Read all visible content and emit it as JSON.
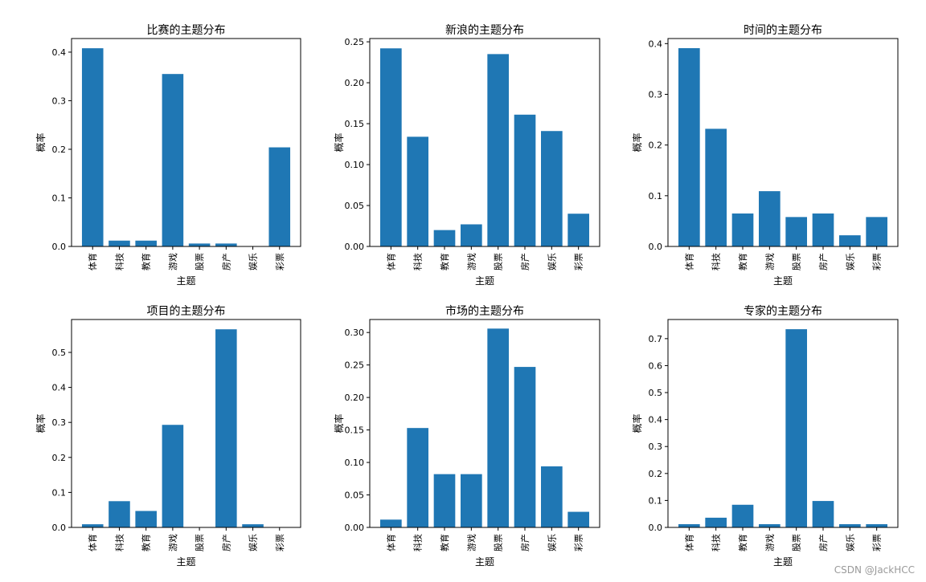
{
  "watermark": "CSDN @JackHCC",
  "colors": {
    "bar": "#1f77b4",
    "axis": "#000000"
  },
  "chart_data": [
    {
      "type": "bar",
      "title": "比赛的主题分布",
      "xlabel": "主题",
      "ylabel": "概率",
      "categories": [
        "体育",
        "科技",
        "教育",
        "游戏",
        "股票",
        "房产",
        "娱乐",
        "彩票"
      ],
      "values": [
        0.408,
        0.012,
        0.012,
        0.355,
        0.006,
        0.006,
        0.0,
        0.204
      ],
      "ylim": [
        0,
        0.428
      ],
      "yticks": [
        0.0,
        0.1,
        0.2,
        0.3,
        0.4
      ],
      "ytick_labels": [
        "0.0",
        "0.1",
        "0.2",
        "0.3",
        "0.4"
      ]
    },
    {
      "type": "bar",
      "title": "新浪的主题分布",
      "xlabel": "主题",
      "ylabel": "概率",
      "categories": [
        "体育",
        "科技",
        "教育",
        "游戏",
        "股票",
        "房产",
        "娱乐",
        "彩票"
      ],
      "values": [
        0.242,
        0.134,
        0.02,
        0.027,
        0.235,
        0.161,
        0.141,
        0.04
      ],
      "ylim": [
        0,
        0.254
      ],
      "yticks": [
        0.0,
        0.05,
        0.1,
        0.15,
        0.2,
        0.25
      ],
      "ytick_labels": [
        "0.00",
        "0.05",
        "0.10",
        "0.15",
        "0.20",
        "0.25"
      ]
    },
    {
      "type": "bar",
      "title": "时间的主题分布",
      "xlabel": "主题",
      "ylabel": "概率",
      "categories": [
        "体育",
        "科技",
        "教育",
        "游戏",
        "股票",
        "房产",
        "娱乐",
        "彩票"
      ],
      "values": [
        0.391,
        0.232,
        0.065,
        0.109,
        0.058,
        0.065,
        0.022,
        0.058
      ],
      "ylim": [
        0,
        0.41
      ],
      "yticks": [
        0.0,
        0.1,
        0.2,
        0.3,
        0.4
      ],
      "ytick_labels": [
        "0.0",
        "0.1",
        "0.2",
        "0.3",
        "0.4"
      ]
    },
    {
      "type": "bar",
      "title": "项目的主题分布",
      "xlabel": "主题",
      "ylabel": "概率",
      "categories": [
        "体育",
        "科技",
        "教育",
        "游戏",
        "股票",
        "房产",
        "娱乐",
        "彩票"
      ],
      "values": [
        0.009,
        0.075,
        0.047,
        0.293,
        0.0,
        0.566,
        0.009,
        0.0
      ],
      "ylim": [
        0,
        0.594
      ],
      "yticks": [
        0.0,
        0.1,
        0.2,
        0.3,
        0.4,
        0.5
      ],
      "ytick_labels": [
        "0.0",
        "0.1",
        "0.2",
        "0.3",
        "0.4",
        "0.5"
      ]
    },
    {
      "type": "bar",
      "title": "市场的主题分布",
      "xlabel": "主题",
      "ylabel": "概率",
      "categories": [
        "体育",
        "科技",
        "教育",
        "游戏",
        "股票",
        "房产",
        "娱乐",
        "彩票"
      ],
      "values": [
        0.012,
        0.153,
        0.082,
        0.082,
        0.306,
        0.247,
        0.094,
        0.024
      ],
      "ylim": [
        0,
        0.32
      ],
      "yticks": [
        0.0,
        0.05,
        0.1,
        0.15,
        0.2,
        0.25,
        0.3
      ],
      "ytick_labels": [
        "0.00",
        "0.05",
        "0.10",
        "0.15",
        "0.20",
        "0.25",
        "0.30"
      ]
    },
    {
      "type": "bar",
      "title": "专家的主题分布",
      "xlabel": "主题",
      "ylabel": "概率",
      "categories": [
        "体育",
        "科技",
        "教育",
        "游戏",
        "股票",
        "房产",
        "娱乐",
        "彩票"
      ],
      "values": [
        0.012,
        0.036,
        0.084,
        0.012,
        0.735,
        0.098,
        0.012,
        0.012
      ],
      "ylim": [
        0,
        0.771
      ],
      "yticks": [
        0.0,
        0.1,
        0.2,
        0.3,
        0.4,
        0.5,
        0.6,
        0.7
      ],
      "ytick_labels": [
        "0.0",
        "0.1",
        "0.2",
        "0.3",
        "0.4",
        "0.5",
        "0.6",
        "0.7"
      ]
    }
  ]
}
